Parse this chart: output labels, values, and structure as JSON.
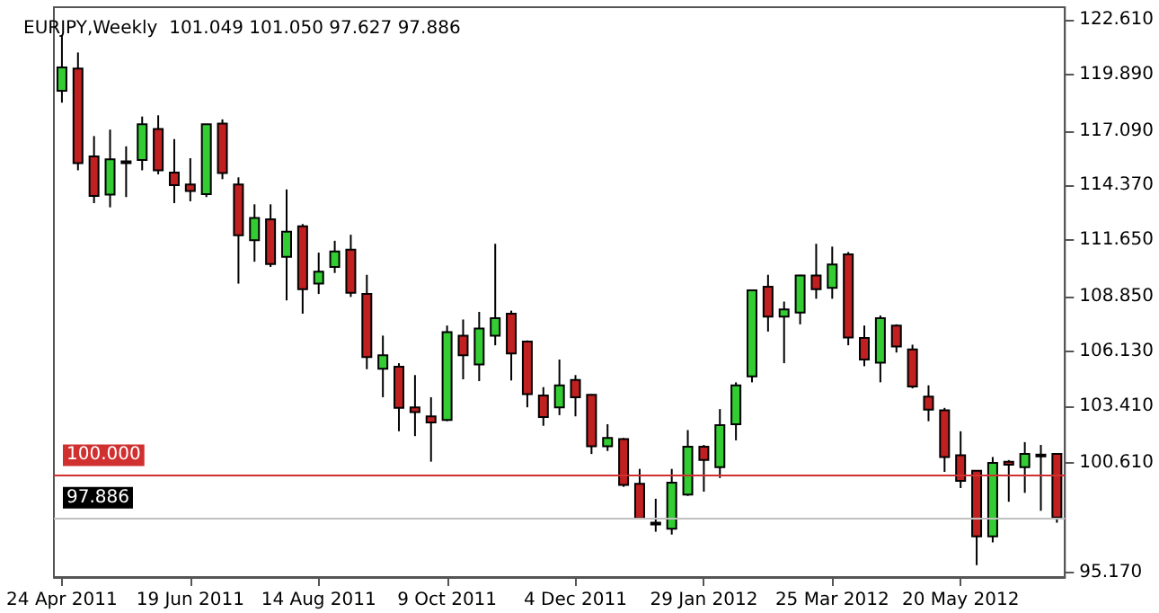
{
  "chart_data": {
    "type": "candlestick",
    "title": "EURJPY,Weekly  101.049 101.050 97.627 97.886",
    "categories": [
      "24 Apr 2011",
      null,
      null,
      null,
      null,
      null,
      null,
      null,
      "19 Jun 2011",
      null,
      null,
      null,
      null,
      null,
      null,
      null,
      "14 Aug 2011",
      null,
      null,
      null,
      null,
      null,
      null,
      null,
      "9 Oct 2011",
      null,
      null,
      null,
      null,
      null,
      null,
      null,
      "4 Dec 2011",
      null,
      null,
      null,
      null,
      null,
      null,
      null,
      "29 Jan 2012",
      null,
      null,
      null,
      null,
      null,
      null,
      null,
      "25 Mar 2012",
      null,
      null,
      null,
      null,
      null,
      null,
      null,
      "20 May 2012",
      null,
      null,
      null,
      null,
      null,
      null
    ],
    "ohlc": [
      [
        119.08,
        121.81,
        118.49,
        120.24
      ],
      [
        120.18,
        120.98,
        115.13,
        115.49
      ],
      [
        115.82,
        116.83,
        113.5,
        113.86
      ],
      [
        113.92,
        117.15,
        113.29,
        115.67
      ],
      [
        115.49,
        116.32,
        113.8,
        115.58
      ],
      [
        115.64,
        117.8,
        115.13,
        117.42
      ],
      [
        117.18,
        117.86,
        114.93,
        115.13
      ],
      [
        115.02,
        116.68,
        113.5,
        114.39
      ],
      [
        114.42,
        115.73,
        113.59,
        114.1
      ],
      [
        113.95,
        117.42,
        113.8,
        117.42
      ],
      [
        117.45,
        117.66,
        114.69,
        114.99
      ],
      [
        114.42,
        114.78,
        109.5,
        111.9
      ],
      [
        111.66,
        113.44,
        110.59,
        112.76
      ],
      [
        112.7,
        113.44,
        110.33,
        110.48
      ],
      [
        110.83,
        114.18,
        108.67,
        112.08
      ],
      [
        112.35,
        112.46,
        108.01,
        109.23
      ],
      [
        109.5,
        111.04,
        108.99,
        110.09
      ],
      [
        110.33,
        111.63,
        110.03,
        111.1
      ],
      [
        111.19,
        111.93,
        108.84,
        109.05
      ],
      [
        108.99,
        109.94,
        105.25,
        105.85
      ],
      [
        105.28,
        106.92,
        103.86,
        105.94
      ],
      [
        105.37,
        105.55,
        102.17,
        103.33
      ],
      [
        103.36,
        104.96,
        101.93,
        103.12
      ],
      [
        102.91,
        103.86,
        100.66,
        102.61
      ],
      [
        102.73,
        107.42,
        102.67,
        107.09
      ],
      [
        106.92,
        107.72,
        104.75,
        105.94
      ],
      [
        105.49,
        108.1,
        104.66,
        107.27
      ],
      [
        106.92,
        111.48,
        106.44,
        107.78
      ],
      [
        108.01,
        108.16,
        104.69,
        106.03
      ],
      [
        106.62,
        106.68,
        103.36,
        104.01
      ],
      [
        103.95,
        104.36,
        102.44,
        102.88
      ],
      [
        103.36,
        105.73,
        102.97,
        104.45
      ],
      [
        104.72,
        104.96,
        102.91,
        103.86
      ],
      [
        103.98,
        104.01,
        101.04,
        101.43
      ],
      [
        101.43,
        102.52,
        101.19,
        101.84
      ],
      [
        101.78,
        101.84,
        99.41,
        99.5
      ],
      [
        99.56,
        100.3,
        97.84,
        97.84
      ],
      [
        97.63,
        98.82,
        97.18,
        97.54
      ],
      [
        97.33,
        100.3,
        97.04,
        99.62
      ],
      [
        99.02,
        102.23,
        98.96,
        101.4
      ],
      [
        101.4,
        101.49,
        99.17,
        100.74
      ],
      [
        100.39,
        103.27,
        99.85,
        102.47
      ],
      [
        102.52,
        104.6,
        101.72,
        104.45
      ],
      [
        104.9,
        109.2,
        104.6,
        109.17
      ],
      [
        109.35,
        109.94,
        107.12,
        107.86
      ],
      [
        107.86,
        108.61,
        105.55,
        108.22
      ],
      [
        108.07,
        109.94,
        107.48,
        109.91
      ],
      [
        109.91,
        111.48,
        108.75,
        109.23
      ],
      [
        109.29,
        111.34,
        108.75,
        110.45
      ],
      [
        110.95,
        111.07,
        106.44,
        106.83
      ],
      [
        106.8,
        107.42,
        105.4,
        105.73
      ],
      [
        105.58,
        107.92,
        104.6,
        107.78
      ],
      [
        107.42,
        107.48,
        106.08,
        106.38
      ],
      [
        106.23,
        106.47,
        104.3,
        104.39
      ],
      [
        103.89,
        104.45,
        102.67,
        103.24
      ],
      [
        103.21,
        103.33,
        100.15,
        100.89
      ],
      [
        100.98,
        102.17,
        99.35,
        99.71
      ],
      [
        100.21,
        100.21,
        95.52,
        96.95
      ],
      [
        96.95,
        100.89,
        96.65,
        100.6
      ],
      [
        100.66,
        100.74,
        98.67,
        100.51
      ],
      [
        100.39,
        101.63,
        99.11,
        101.04
      ],
      [
        100.98,
        101.49,
        98.22,
        101.01
      ],
      [
        101.049,
        101.05,
        97.627,
        97.886
      ]
    ],
    "colors": [
      "#33cc33",
      "#c02020",
      "#c02020",
      "#33cc33",
      "#33cc33",
      "#33cc33",
      "#c02020",
      "#c02020",
      "#c02020",
      "#33cc33",
      "#c02020",
      "#c02020",
      "#33cc33",
      "#c02020",
      "#33cc33",
      "#c02020",
      "#33cc33",
      "#33cc33",
      "#c02020",
      "#c02020",
      "#33cc33",
      "#c02020",
      "#c02020",
      "#c02020",
      "#33cc33",
      "#c02020",
      "#33cc33",
      "#33cc33",
      "#c02020",
      "#c02020",
      "#c02020",
      "#33cc33",
      "#c02020",
      "#c02020",
      "#33cc33",
      "#c02020",
      "#c02020",
      "#c02020",
      "#33cc33",
      "#33cc33",
      "#c02020",
      "#33cc33",
      "#33cc33",
      "#33cc33",
      "#c02020",
      "#33cc33",
      "#33cc33",
      "#c02020",
      "#33cc33",
      "#c02020",
      "#c02020",
      "#33cc33",
      "#c02020",
      "#c02020",
      "#c02020",
      "#c02020",
      "#c02020",
      "#c02020",
      "#33cc33",
      "#c02020",
      "#33cc33",
      "#33cc33",
      "#c02020"
    ],
    "ylim": [
      94.93,
      123.23
    ],
    "yticks": [
      {
        "value": 95.17,
        "label": "95.170"
      },
      {
        "value": 100.61,
        "label": "100.610"
      },
      {
        "value": 103.41,
        "label": "103.410"
      },
      {
        "value": 106.13,
        "label": "106.130"
      },
      {
        "value": 108.85,
        "label": "108.850"
      },
      {
        "value": 111.65,
        "label": "111.650"
      },
      {
        "value": 114.37,
        "label": "114.370"
      },
      {
        "value": 117.09,
        "label": "117.090"
      },
      {
        "value": 119.89,
        "label": "119.890"
      },
      {
        "value": 122.61,
        "label": "122.610"
      }
    ],
    "ref_lines": [
      {
        "axis": "y",
        "value": 100,
        "label": "100.000",
        "color": "#d03030"
      },
      {
        "axis": "y",
        "value": 97.886,
        "label": "97.886",
        "color": "#c0c0c0"
      }
    ]
  }
}
